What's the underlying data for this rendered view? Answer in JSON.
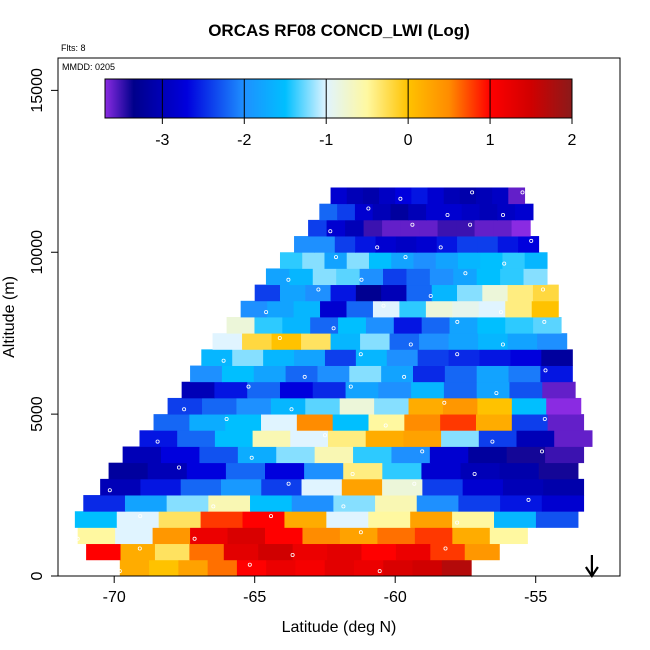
{
  "chart_data": {
    "type": "heatmap",
    "title": "ORCAS RF08 CONCD_LWI (Log)",
    "flights_label": "Flts: 8",
    "date_label": "MMDD: 0205",
    "xlabel": "Latitude (deg N)",
    "ylabel": "Altitude (m)",
    "xlim": [
      -72,
      -52
    ],
    "ylim": [
      0,
      16000
    ],
    "xticks": [
      "-70",
      "-65",
      "-60",
      "-55"
    ],
    "xtick_values": [
      -70,
      -65,
      -60,
      -55
    ],
    "yticks": [
      "0",
      "5000",
      "10000",
      "15000"
    ],
    "ytick_values": [
      0,
      5000,
      10000,
      15000
    ],
    "colorbar": {
      "range": [
        -3.7,
        2.0
      ],
      "tick_labels": [
        "-3",
        "-2",
        "-1",
        "0",
        "1",
        "2"
      ],
      "tick_values": [
        -3,
        -2,
        -1,
        0,
        1,
        2
      ],
      "stops": [
        {
          "v": -3.7,
          "color": "#8a2be2"
        },
        {
          "v": -3.35,
          "color": "#00008b"
        },
        {
          "v": -2.7,
          "color": "#0000dd"
        },
        {
          "v": -2.0,
          "color": "#1e90ff"
        },
        {
          "v": -1.5,
          "color": "#00bfff"
        },
        {
          "v": -1.0,
          "color": "#e0f4ff"
        },
        {
          "v": -0.5,
          "color": "#fff8a0"
        },
        {
          "v": 0.0,
          "color": "#ffc200"
        },
        {
          "v": 0.5,
          "color": "#ff8c00"
        },
        {
          "v": 1.0,
          "color": "#ff0000"
        },
        {
          "v": 1.5,
          "color": "#d00000"
        },
        {
          "v": 2.0,
          "color": "#8b1a1a"
        }
      ]
    },
    "rows": [
      {
        "y": 0,
        "xmin": -69.8,
        "xmax": -57.3,
        "values": [
          0.2,
          0.0,
          0.3,
          0.6,
          1.0,
          1.2,
          1.1,
          1.3,
          1.2,
          1.4,
          1.5,
          1.7
        ]
      },
      {
        "y": 500,
        "xmin": -71.0,
        "xmax": -56.3,
        "values": [
          1.0,
          0.2,
          -0.3,
          0.6,
          1.3,
          1.5,
          1.2,
          1.3,
          1.0,
          1.2,
          0.8,
          0.4
        ]
      },
      {
        "y": 1000,
        "xmin": -71.3,
        "xmax": -55.3,
        "values": [
          -0.5,
          -1.0,
          0.4,
          1.2,
          1.4,
          1.0,
          0.5,
          0.3,
          0.6,
          0.8,
          0.2,
          -0.5
        ]
      },
      {
        "y": 1500,
        "xmin": -71.4,
        "xmax": -53.5,
        "values": [
          -1.5,
          -1.0,
          -0.3,
          0.8,
          1.0,
          0.2,
          -1.0,
          -0.5,
          0.3,
          -0.5,
          -1.6,
          -2.3
        ]
      },
      {
        "y": 2000,
        "xmin": -71.1,
        "xmax": -53.3,
        "values": [
          -2.5,
          -1.8,
          -1.2,
          -0.6,
          -1.5,
          -2.0,
          -1.2,
          -0.6,
          -2.0,
          -2.4,
          -2.6,
          -2.8
        ]
      },
      {
        "y": 2500,
        "xmin": -70.5,
        "xmax": -53.3,
        "values": [
          -3.0,
          -2.6,
          -2.2,
          -1.9,
          -2.4,
          -1.0,
          0.3,
          -0.8,
          -2.4,
          -2.8,
          -3.0,
          -3.1
        ]
      },
      {
        "y": 3000,
        "xmin": -70.2,
        "xmax": -53.5,
        "values": [
          -3.2,
          -3.0,
          -2.7,
          -2.2,
          -2.7,
          -2.0,
          -0.4,
          -1.4,
          -2.8,
          -3.0,
          -3.1,
          -3.4
        ]
      },
      {
        "y": 3500,
        "xmin": -69.7,
        "xmax": -53.3,
        "values": [
          -3.0,
          -2.7,
          -2.3,
          -1.7,
          -1.2,
          -0.6,
          -1.4,
          -2.0,
          -2.8,
          -3.2,
          -3.4,
          -3.5
        ]
      },
      {
        "y": 4000,
        "xmin": -69.1,
        "xmax": -53.0,
        "values": [
          -2.6,
          -2.2,
          -1.5,
          -0.6,
          -1.0,
          -0.4,
          0.2,
          0.3,
          -1.2,
          -2.4,
          -3.0,
          -3.6
        ]
      },
      {
        "y": 4500,
        "xmin": -68.6,
        "xmax": -53.3,
        "values": [
          -2.2,
          -1.7,
          -1.5,
          -1.0,
          0.5,
          -1.5,
          -0.5,
          0.5,
          0.8,
          0.2,
          -2.4,
          -3.6
        ]
      },
      {
        "y": 5000,
        "xmin": -68.1,
        "xmax": -53.4,
        "values": [
          -2.4,
          -2.2,
          -2.0,
          -1.6,
          -1.3,
          -0.8,
          -1.2,
          0.2,
          0.4,
          0.0,
          -1.5,
          -3.7
        ]
      },
      {
        "y": 5500,
        "xmin": -67.6,
        "xmax": -53.6,
        "values": [
          -3.0,
          -2.6,
          -2.2,
          -2.7,
          -2.5,
          -1.8,
          -2.0,
          -1.6,
          -2.2,
          -1.8,
          -2.3,
          -3.6
        ]
      },
      {
        "y": 6000,
        "xmin": -67.3,
        "xmax": -53.7,
        "values": [
          -2.0,
          -1.5,
          -1.8,
          -2.2,
          -2.0,
          -1.2,
          -1.8,
          -2.5,
          -2.2,
          -1.8,
          -2.1,
          -2.6
        ]
      },
      {
        "y": 6500,
        "xmin": -66.9,
        "xmax": -53.7,
        "values": [
          -1.6,
          -1.2,
          -1.6,
          -1.8,
          -2.4,
          -1.6,
          -2.0,
          -2.4,
          -2.5,
          -2.6,
          -2.7,
          -3.2
        ]
      },
      {
        "y": 7000,
        "xmin": -66.5,
        "xmax": -53.9,
        "values": [
          -1.0,
          -0.2,
          0.0,
          -0.3,
          -1.6,
          -1.2,
          -2.2,
          -2.0,
          -1.8,
          -1.6,
          -1.8,
          -2.0
        ]
      },
      {
        "y": 7500,
        "xmin": -66.0,
        "xmax": -54.1,
        "values": [
          -0.8,
          -1.4,
          -1.6,
          -2.2,
          -1.5,
          -2.0,
          -2.6,
          -2.2,
          -1.8,
          -1.5,
          -1.4,
          -1.3
        ]
      },
      {
        "y": 8000,
        "xmin": -65.5,
        "xmax": -54.2,
        "values": [
          -2.0,
          -1.8,
          -1.6,
          -2.8,
          -2.2,
          -1.0,
          -1.4,
          -0.8,
          -0.9,
          -1.0,
          -0.4,
          0.0
        ]
      },
      {
        "y": 8500,
        "xmin": -65.0,
        "xmax": -54.2,
        "values": [
          -2.4,
          -1.8,
          -2.0,
          -2.6,
          -3.3,
          -3.0,
          -2.2,
          -1.6,
          -1.2,
          -0.8,
          -0.4,
          -0.2
        ]
      },
      {
        "y": 9000,
        "xmin": -64.6,
        "xmax": -54.6,
        "values": [
          -1.8,
          -1.6,
          -1.2,
          -1.3,
          -2.0,
          -2.4,
          -2.2,
          -2.0,
          -1.8,
          -1.5,
          -1.4,
          -1.2
        ]
      },
      {
        "y": 9500,
        "xmin": -64.1,
        "xmax": -54.6,
        "values": [
          -1.4,
          -1.2,
          -1.8,
          -1.2,
          -1.5,
          -1.8,
          -2.0,
          -1.8,
          -1.6,
          -1.5,
          -1.4,
          -1.6
        ]
      },
      {
        "y": 10000,
        "xmin": -63.6,
        "xmax": -54.9,
        "values": [
          -2.0,
          -2.0,
          -2.4,
          -2.6,
          -2.8,
          -2.9,
          -2.8,
          -2.6,
          -2.4,
          -2.4,
          -2.6,
          -2.7
        ]
      },
      {
        "y": 10500,
        "xmin": -63.1,
        "xmax": -55.2,
        "values": [
          -2.4,
          -2.8,
          -3.0,
          -3.5,
          -3.6,
          -3.6,
          -3.6,
          -3.5,
          -3.5,
          -3.6,
          -3.6,
          -3.7
        ]
      },
      {
        "y": 11000,
        "xmin": -62.7,
        "xmax": -55.1,
        "values": [
          -2.2,
          -2.4,
          -2.8,
          -3.0,
          -3.2,
          -3.0,
          -2.8,
          -2.8,
          -2.9,
          -3.0,
          -2.9,
          -2.8
        ]
      },
      {
        "y": 11500,
        "xmin": -62.3,
        "xmax": -55.4,
        "values": [
          -2.8,
          -3.0,
          -3.1,
          -2.9,
          -2.7,
          -2.6,
          -2.8,
          -3.0,
          -3.1,
          -3.0,
          -2.9,
          -3.6
        ]
      }
    ],
    "arrow": {
      "x": -53.0,
      "direction": "down"
    }
  }
}
